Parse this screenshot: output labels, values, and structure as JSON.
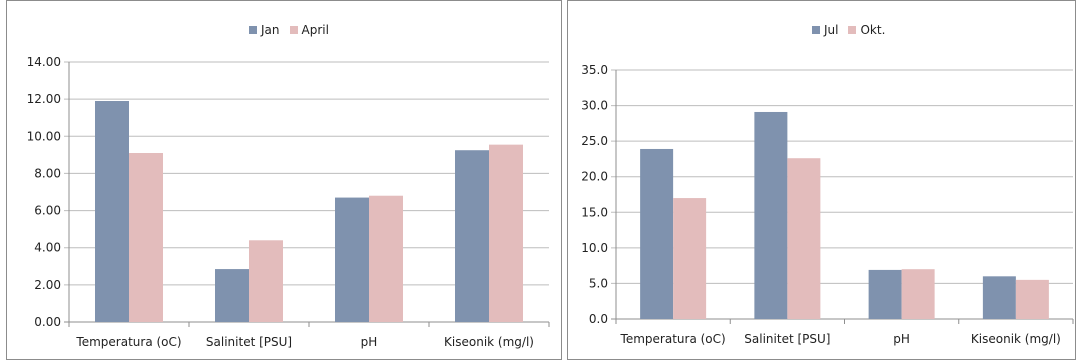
{
  "chart_data": [
    {
      "type": "bar",
      "categories": [
        "Temperatura (oC)",
        "Salinitet [PSU]",
        "pH",
        "Kiseonik (mg/l)"
      ],
      "series": [
        {
          "name": "Jan",
          "values": [
            11.9,
            2.85,
            6.7,
            9.25
          ],
          "color": "#7f92ae"
        },
        {
          "name": "April",
          "values": [
            9.1,
            4.4,
            6.8,
            9.55
          ],
          "color": "#e3bcbc"
        }
      ],
      "ylim": [
        0,
        14
      ],
      "yticks": [
        "0.00",
        "2.00",
        "4.00",
        "6.00",
        "8.00",
        "10.00",
        "12.00",
        "14.00"
      ],
      "grid": true,
      "legend_position": "top-center"
    },
    {
      "type": "bar",
      "categories": [
        "Temperatura (oC)",
        "Salinitet [PSU]",
        "pH",
        "Kiseonik (mg/l)"
      ],
      "series": [
        {
          "name": "Jul",
          "values": [
            23.9,
            29.1,
            6.9,
            6.0
          ],
          "color": "#7f92ae"
        },
        {
          "name": "Okt.",
          "values": [
            17.0,
            22.6,
            7.0,
            5.5
          ],
          "color": "#e3bcbc"
        }
      ],
      "ylim": [
        0,
        35
      ],
      "yticks": [
        "0.0",
        "5.0",
        "10.0",
        "15.0",
        "20.0",
        "25.0",
        "30.0",
        "35.0"
      ],
      "grid": true,
      "legend_position": "top-center"
    }
  ]
}
